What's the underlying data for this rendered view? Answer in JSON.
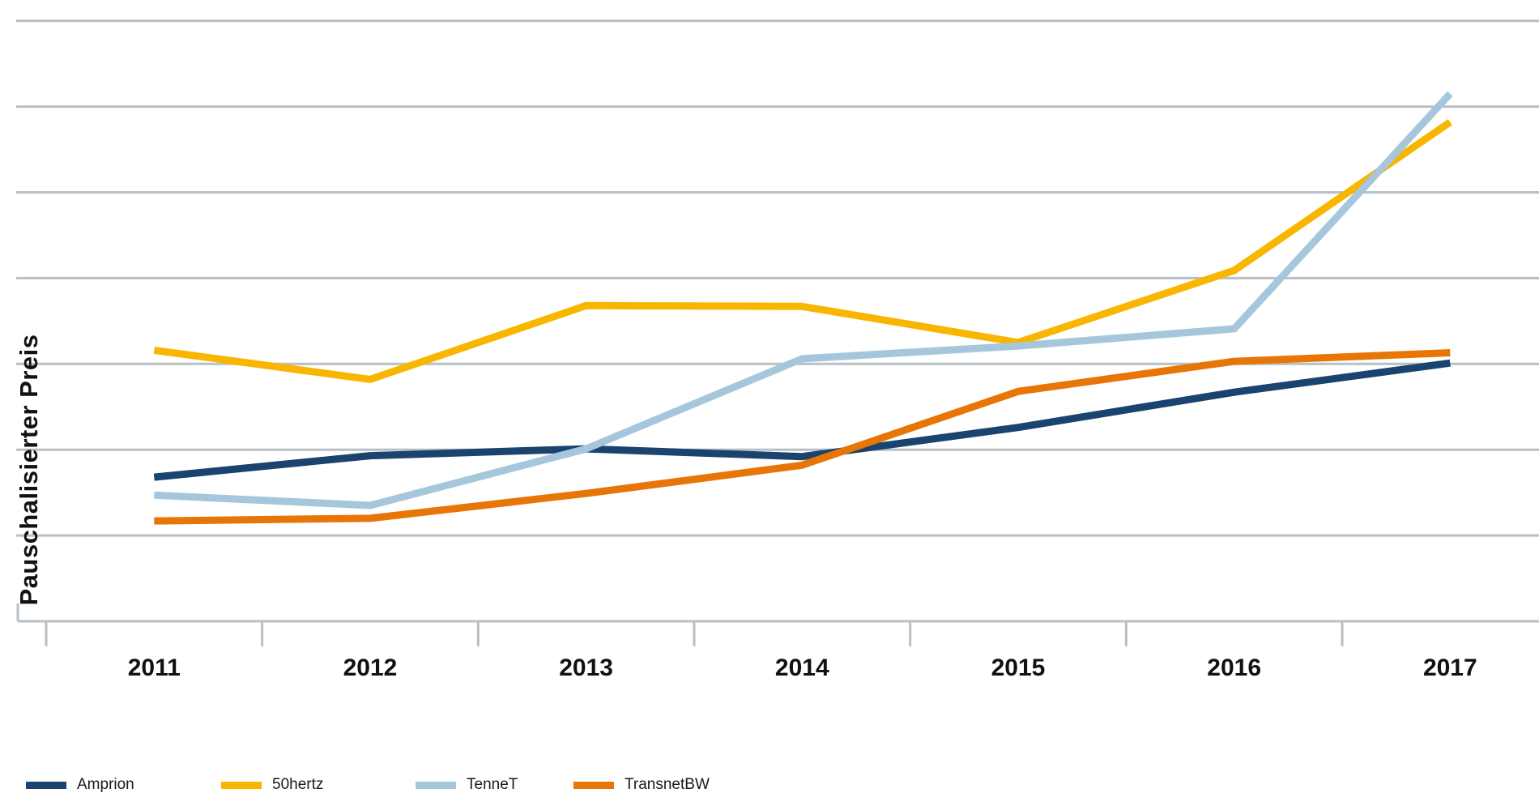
{
  "chart_data": {
    "type": "line",
    "title": "",
    "xlabel": "",
    "ylabel": "Pauschalisierter Preis",
    "categories": [
      "2011",
      "2012",
      "2013",
      "2014",
      "2015",
      "2016",
      "2017"
    ],
    "series": [
      {
        "name": "Amprion",
        "color": "#1A436E",
        "values": [
          1.68,
          1.93,
          2.01,
          1.92,
          2.26,
          2.67,
          3.01
        ]
      },
      {
        "name": "50hertz",
        "color": "#F8B600",
        "values": [
          3.16,
          2.82,
          3.68,
          3.67,
          3.25,
          4.09,
          5.82
        ]
      },
      {
        "name": "TenneT",
        "color": "#A5C6DB",
        "values": [
          1.47,
          1.35,
          2.01,
          3.06,
          3.21,
          3.41,
          6.15
        ]
      },
      {
        "name": "TransnetBW",
        "color": "#E87607",
        "values": [
          1.17,
          1.2,
          1.49,
          1.82,
          2.68,
          3.03,
          3.13
        ]
      }
    ],
    "ylim": [
      0,
      7.25
    ],
    "y_gridlines": [
      1,
      2,
      3,
      4,
      5,
      6,
      7
    ],
    "y_tick_labels_visible": false,
    "grid": true,
    "legend_position": "bottom-left",
    "gridline_color": "#B6C0C6",
    "axis_color": "#B6C0C6",
    "tick_label_color": "#111111",
    "text_color": "#111111"
  }
}
